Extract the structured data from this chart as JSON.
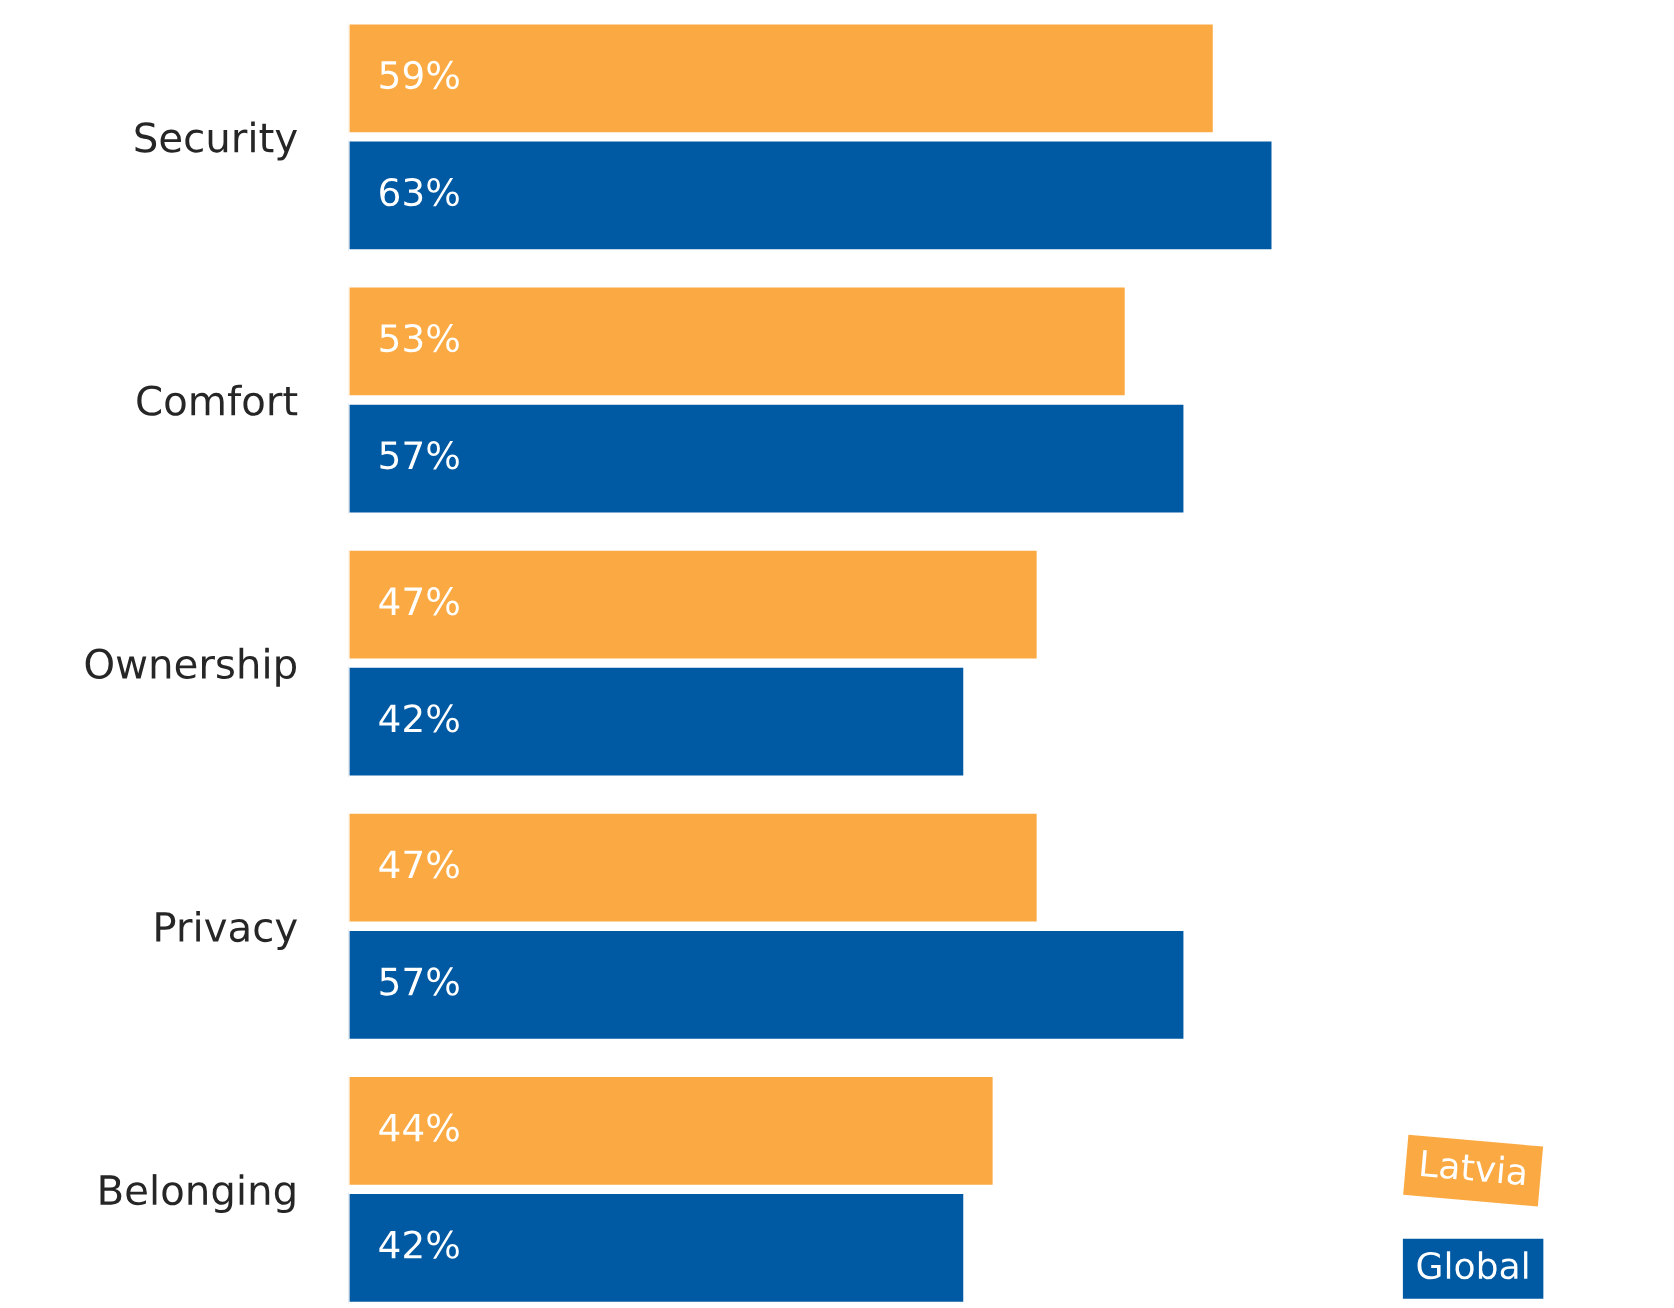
{
  "chart_data": {
    "type": "bar",
    "orientation": "horizontal",
    "categories": [
      "Security",
      "Comfort",
      "Ownership",
      "Privacy",
      "Belonging"
    ],
    "series": [
      {
        "name": "Latvia",
        "color": "#fbaa43",
        "values": [
          59,
          53,
          47,
          47,
          44
        ],
        "value_labels": [
          "59%",
          "53%",
          "47%",
          "47%",
          "44%"
        ]
      },
      {
        "name": "Global",
        "color": "#0059a3",
        "values": [
          63,
          57,
          42,
          57,
          42
        ],
        "value_labels": [
          "63%",
          "57%",
          "42%",
          "57%",
          "42%"
        ]
      }
    ],
    "legend": "bottom right",
    "grid": false
  }
}
